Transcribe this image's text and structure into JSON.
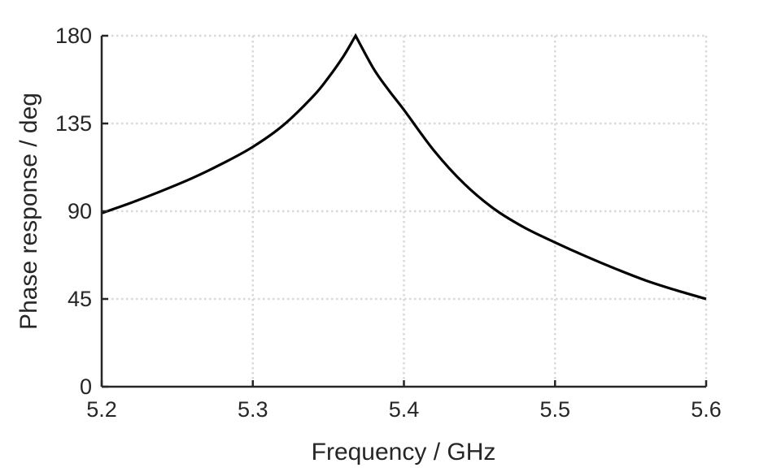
{
  "chart_data": {
    "type": "line",
    "title": "",
    "xlabel": "Frequency / GHz",
    "ylabel": "Phase response / deg",
    "xlim": [
      5.2,
      5.6
    ],
    "ylim": [
      0,
      180
    ],
    "x_ticks": [
      5.2,
      5.3,
      5.4,
      5.5,
      5.6
    ],
    "x_tick_labels": [
      "5.2",
      "5.3",
      "5.4",
      "5.5",
      "5.6"
    ],
    "y_ticks": [
      0,
      45,
      90,
      135,
      180
    ],
    "y_tick_labels": [
      "0",
      "45",
      "90",
      "135",
      "180"
    ],
    "grid": true,
    "series": [
      {
        "x": [
          5.2,
          5.22,
          5.24,
          5.26,
          5.28,
          5.3,
          5.32,
          5.34,
          5.35,
          5.36,
          5.368,
          5.38,
          5.39,
          5.4,
          5.42,
          5.44,
          5.46,
          5.48,
          5.5,
          5.52,
          5.54,
          5.56,
          5.58,
          5.6
        ],
        "y": [
          89,
          94.5,
          100.5,
          107,
          114.5,
          123,
          134,
          149,
          158.5,
          169.5,
          180,
          163,
          152,
          142,
          121,
          104,
          91,
          81.5,
          74,
          67,
          60.5,
          54.5,
          49.5,
          45
        ],
        "color": "#000000"
      }
    ]
  }
}
